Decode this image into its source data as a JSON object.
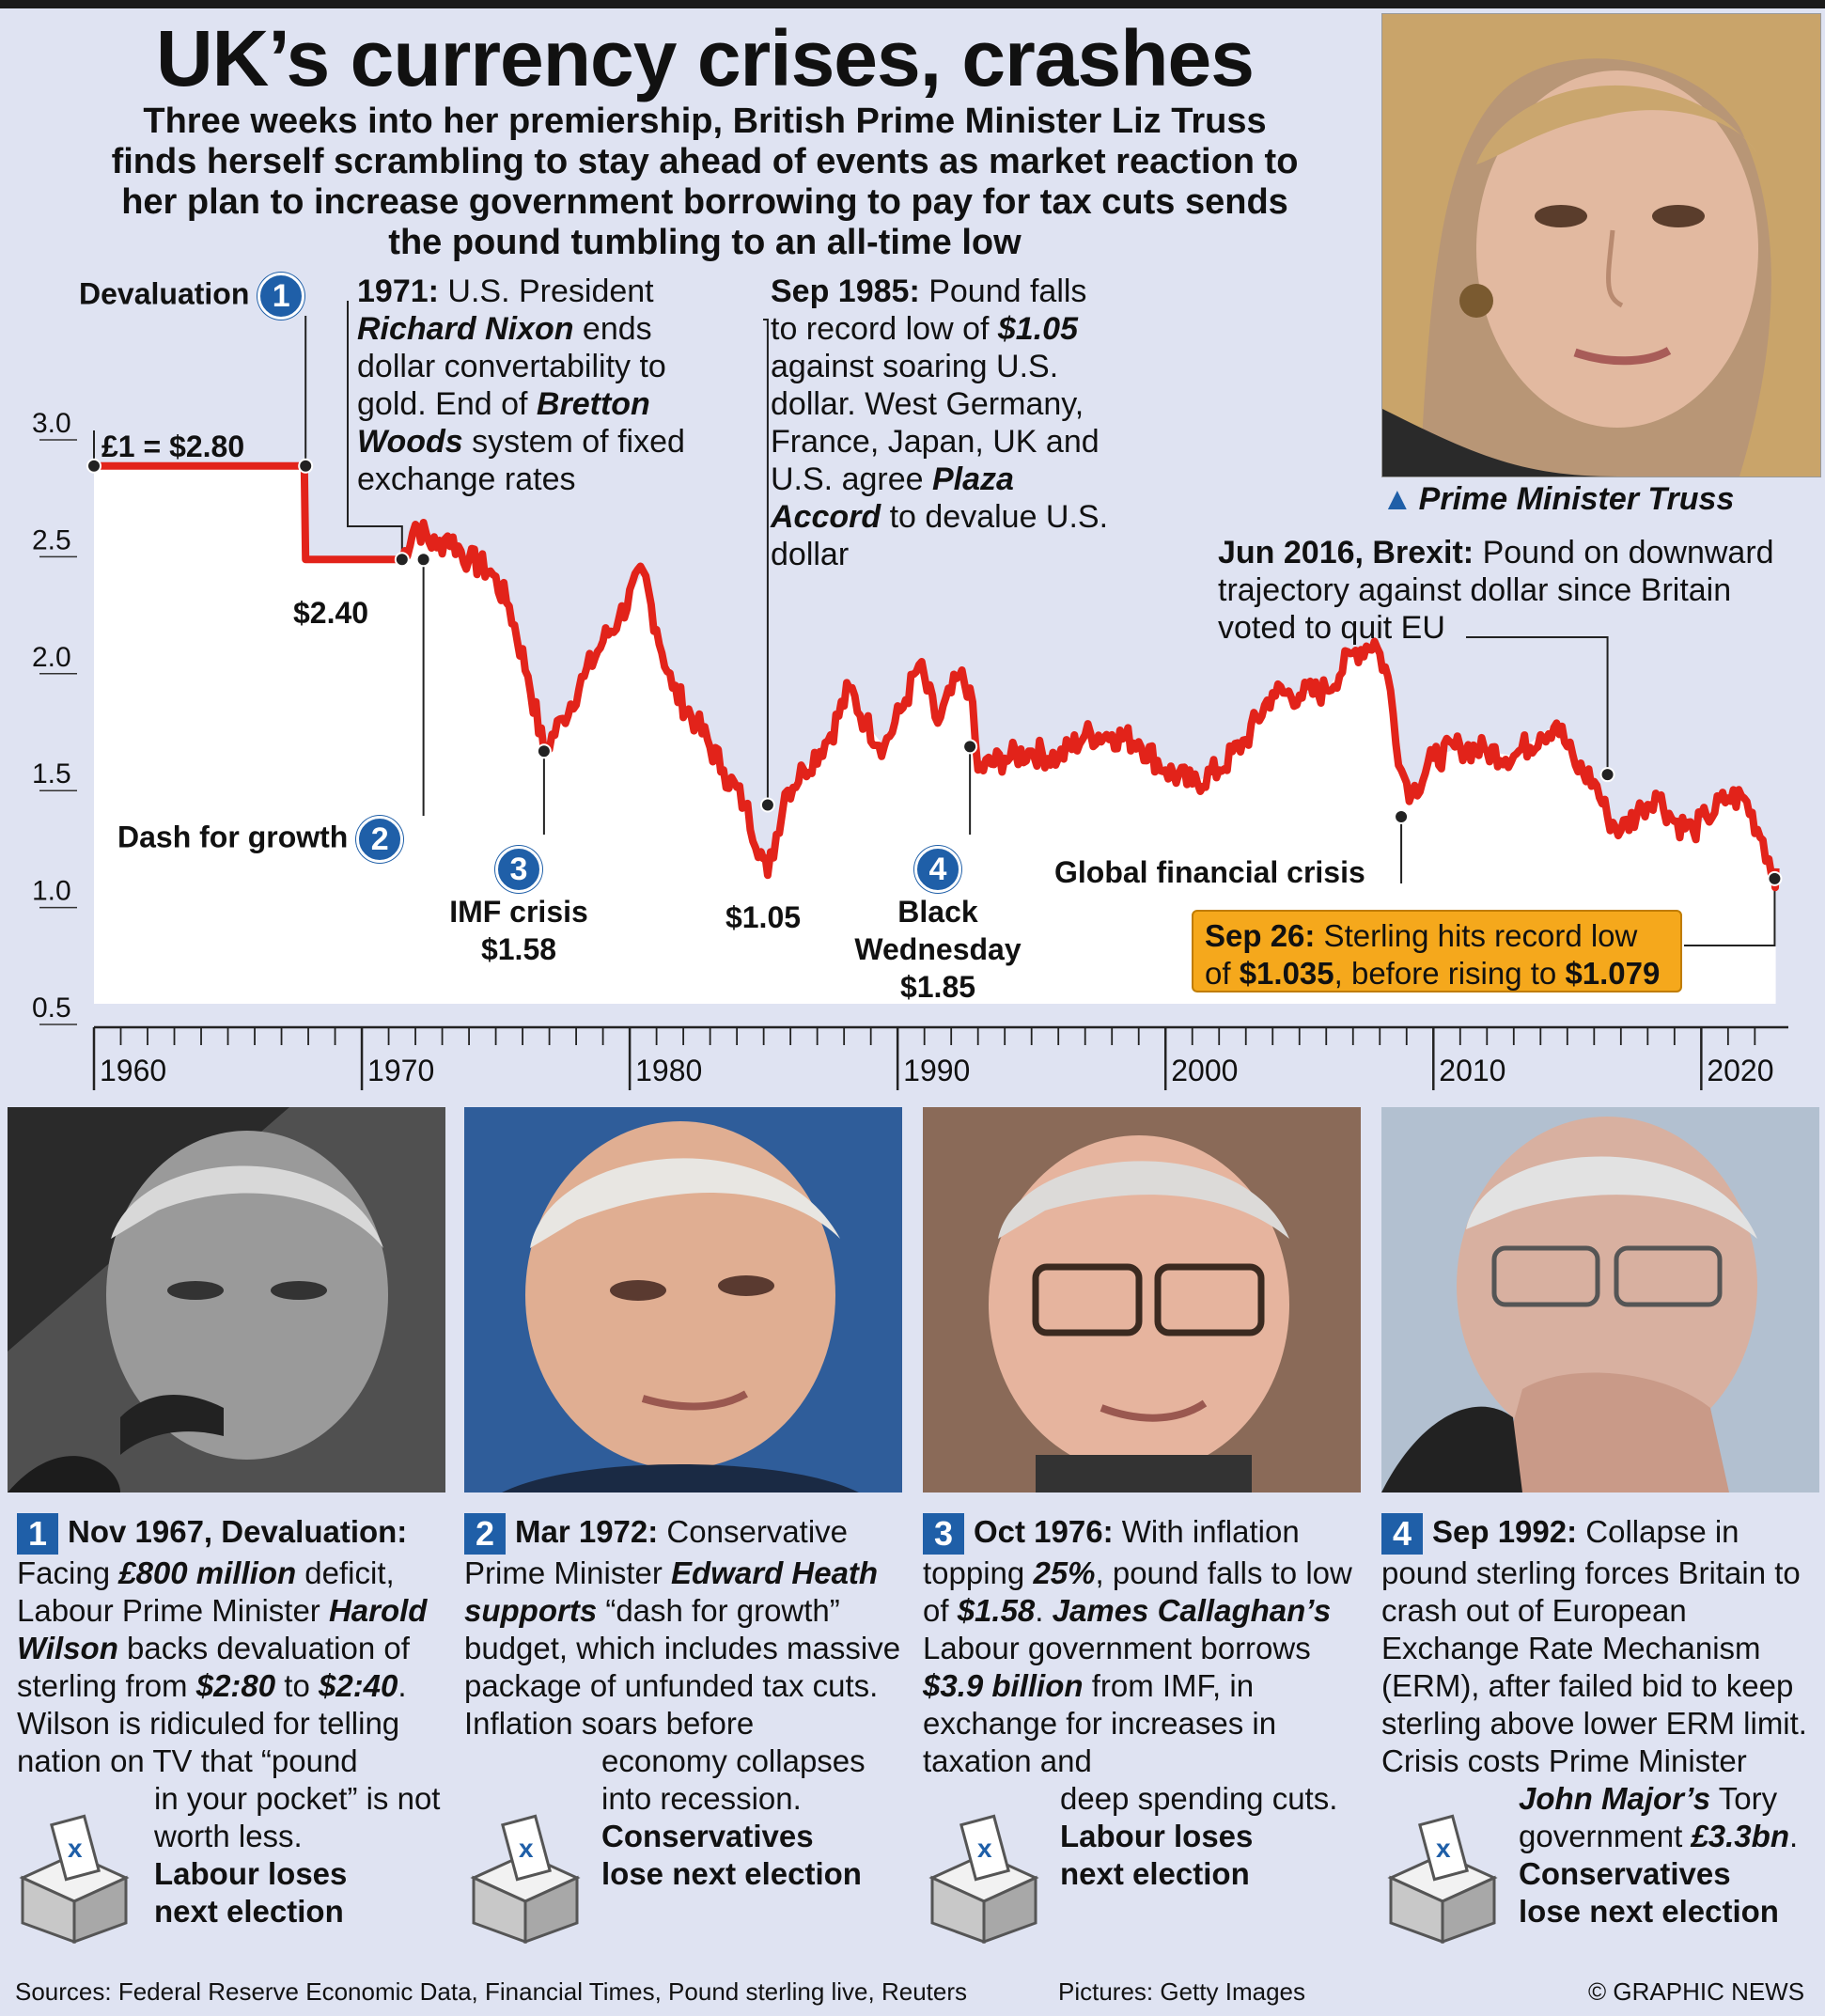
{
  "title": "UK’s currency crises, crashes",
  "subtitle": "Three weeks into her premiership, British Prime Minister Liz Truss finds herself scrambling to stay ahead of events as market reaction to her plan to increase government borrowing to pay for tax cuts sends the pound tumbling to an all-time low",
  "pm_photo_caption": "Prime Minister Truss",
  "colors": {
    "line": "#e2231a",
    "badge": "#1f5fa8",
    "callout": "#f5a81c",
    "background": "#dfe3f2"
  },
  "chart_data": {
    "type": "line",
    "x_label_ticks": [
      "1960",
      "1970",
      "1980",
      "1990",
      "2000",
      "2010",
      "2020"
    ],
    "y_ticks": [
      "0.5",
      "1.0",
      "1.5",
      "2.0",
      "2.5",
      "3.0"
    ],
    "ylim": [
      0.5,
      3.0
    ],
    "xlim": [
      1960,
      2022.9
    ],
    "series": [
      {
        "values": [
          [
            1960,
            2.8
          ],
          [
            1967.85,
            2.8
          ],
          [
            1967.9,
            2.4
          ],
          [
            1971.5,
            2.4
          ],
          [
            1972.0,
            2.55
          ],
          [
            1972.8,
            2.45
          ],
          [
            1973.2,
            2.5
          ],
          [
            1974.0,
            2.4
          ],
          [
            1974.8,
            2.35
          ],
          [
            1975.5,
            2.2
          ],
          [
            1976.2,
            1.9
          ],
          [
            1976.8,
            1.58
          ],
          [
            1977.5,
            1.72
          ],
          [
            1978.3,
            1.9
          ],
          [
            1979.0,
            2.05
          ],
          [
            1979.6,
            2.15
          ],
          [
            1980.5,
            2.35
          ],
          [
            1981.0,
            2.1
          ],
          [
            1981.6,
            1.85
          ],
          [
            1982.5,
            1.7
          ],
          [
            1983.5,
            1.5
          ],
          [
            1984.3,
            1.35
          ],
          [
            1984.9,
            1.15
          ],
          [
            1985.15,
            1.05
          ],
          [
            1985.8,
            1.4
          ],
          [
            1986.5,
            1.5
          ],
          [
            1987.5,
            1.65
          ],
          [
            1988.2,
            1.85
          ],
          [
            1988.8,
            1.7
          ],
          [
            1989.5,
            1.6
          ],
          [
            1990.3,
            1.8
          ],
          [
            1990.8,
            1.95
          ],
          [
            1991.5,
            1.7
          ],
          [
            1992.3,
            1.9
          ],
          [
            1992.7,
            1.85
          ],
          [
            1993.0,
            1.5
          ],
          [
            1994.0,
            1.55
          ],
          [
            1995.0,
            1.58
          ],
          [
            1996.0,
            1.55
          ],
          [
            1997.0,
            1.65
          ],
          [
            1998.0,
            1.65
          ],
          [
            1999.0,
            1.62
          ],
          [
            2000.0,
            1.5
          ],
          [
            2001.0,
            1.44
          ],
          [
            2002.0,
            1.5
          ],
          [
            2003.0,
            1.63
          ],
          [
            2004.0,
            1.83
          ],
          [
            2005.0,
            1.82
          ],
          [
            2006.0,
            1.84
          ],
          [
            2007.0,
            2.0
          ],
          [
            2007.8,
            2.05
          ],
          [
            2008.3,
            1.9
          ],
          [
            2008.8,
            1.5
          ],
          [
            2009.2,
            1.4
          ],
          [
            2010.0,
            1.55
          ],
          [
            2011.0,
            1.6
          ],
          [
            2012.0,
            1.58
          ],
          [
            2013.0,
            1.56
          ],
          [
            2014.0,
            1.65
          ],
          [
            2014.6,
            1.7
          ],
          [
            2015.3,
            1.52
          ],
          [
            2016.0,
            1.45
          ],
          [
            2016.5,
            1.3
          ],
          [
            2017.0,
            1.24
          ],
          [
            2017.8,
            1.34
          ],
          [
            2018.3,
            1.4
          ],
          [
            2019.0,
            1.28
          ],
          [
            2019.7,
            1.24
          ],
          [
            2020.2,
            1.3
          ],
          [
            2021.0,
            1.38
          ],
          [
            2021.6,
            1.38
          ],
          [
            2022.3,
            1.2
          ],
          [
            2022.74,
            1.035
          ],
          [
            2022.78,
            1.079
          ]
        ]
      }
    ],
    "annotations": [
      {
        "year": 1960.0,
        "value": 2.8,
        "label": "£1 = $2.80"
      },
      {
        "year": 1967.9,
        "value": 2.8,
        "label": "Devaluation",
        "badge": "1"
      },
      {
        "year": 1971.5,
        "value": 2.4,
        "label": "$2.40"
      },
      {
        "year": 1972.3,
        "value": 2.4,
        "label": "Dash for growth",
        "badge": "2"
      },
      {
        "year": 1976.8,
        "value": 1.58,
        "label": "IMF crisis $1.58",
        "badge": "3"
      },
      {
        "year": 1985.15,
        "value": 1.05,
        "label": "$1.05"
      },
      {
        "year": 1992.7,
        "value": 1.85,
        "label": "Black Wednesday $1.85",
        "badge": "4"
      },
      {
        "year": 2008.8,
        "value": 1.5,
        "label": "Global financial crisis"
      },
      {
        "year": 2016.5,
        "value": 1.48,
        "label": "Jun 2016, Brexit"
      },
      {
        "year": 2022.74,
        "value": 1.035,
        "label": "Sep 26"
      }
    ]
  },
  "chart_labels": {
    "start_rate": "£1 = $2.80",
    "devaluation": "Devaluation",
    "rate_240": "$2.40",
    "dash": "Dash for growth",
    "imf_1": "IMF crisis",
    "imf_2": "$1.58",
    "low_105": "$1.05",
    "bw_1": "Black",
    "bw_2": "Wednesday",
    "bw_3": "$1.85",
    "gfc": "Global financial crisis"
  },
  "nixon": {
    "date": "1971:",
    "t1": " U.S. President ",
    "name": "Richard Nixon",
    "t2": " ends dollar convertability to gold. End of ",
    "bw": "Bretton Woods",
    "t3": " system of fixed exchange rates"
  },
  "plaza": {
    "date": "Sep 1985:",
    "t1": " Pound falls to record low of ",
    "low": "$1.05",
    "t2": " against soaring U.S. dollar. West Germany, France, Japan, UK and U.S. agree ",
    "accord": "Plaza Accord",
    "t3": " to devalue U.S. dollar"
  },
  "brexit": {
    "date": "Jun 2016, Brexit:",
    "text": " Pound on downward trajectory against dollar since Britain voted to quit EU"
  },
  "callout": {
    "date": "Sep 26:",
    "t1": " Sterling hits record low of ",
    "low": "$1.035",
    "t2": ", before rising to ",
    "high": "$1.079"
  },
  "panels": [
    {
      "num": "1",
      "date": "Nov 1967, Devaluation:",
      "p1": "Facing ",
      "b1": "£800 million",
      "p2": " deficit, Labour Prime Minister ",
      "b2": "Harold Wilson",
      "p3": " backs devaluation of sterling from ",
      "b3": "$2:80",
      "p4": " to ",
      "b4": "$2:40",
      "p5": ". Wilson is ridiculed for telling nation on TV that “pound",
      "tail": "in your pocket” is not worth less.",
      "outcome1": "Labour loses",
      "outcome2": "next election"
    },
    {
      "num": "2",
      "date": "Mar 1972:",
      "p1": " Conservative Prime Minister ",
      "b1": "Edward Heath supports",
      "p2": " “dash for growth” budget, which includes massive package of unfunded tax cuts. Inflation soars before",
      "tail": "economy collapses into recession.",
      "outcome1": "Conservatives",
      "outcome2": "lose next election"
    },
    {
      "num": "3",
      "date": "Oct 1976:",
      "p1": " With inflation topping ",
      "b1": "25%",
      "p2": ", pound falls to low of ",
      "b2": "$1.58",
      "p3": ". ",
      "b3": "James Callaghan’s",
      "p4": " Labour government borrows ",
      "b4": "$3.9 billion",
      "p5": " from IMF, in exchange for increases in taxation and",
      "tail": "deep spending cuts.",
      "outcome1": "Labour loses",
      "outcome2": "next election"
    },
    {
      "num": "4",
      "date": "Sep 1992:",
      "p1": " Collapse in pound sterling forces Britain to crash out of European Exchange Rate Mechanism (ERM), after failed bid to keep sterling above lower ERM limit. Crisis costs Prime Minister",
      "b1": "John Major’s",
      "p2": " Tory government ",
      "b2": "£3.3bn",
      "p3": ".",
      "outcome1": "Conservatives",
      "outcome2": "lose next election"
    }
  ],
  "footer": {
    "sources": "Sources: Federal Reserve Economic Data, Financial Times, Pound sterling live, Reuters",
    "pictures": "Pictures: Getty Images",
    "credit": "© GRAPHIC NEWS"
  }
}
